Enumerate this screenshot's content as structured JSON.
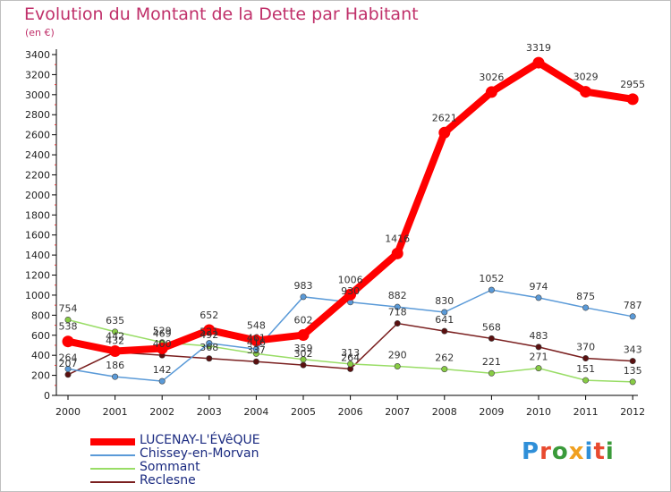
{
  "header": {
    "title": "Evolution du Montant de la Dette par Habitant",
    "unit": "(en €)"
  },
  "logo": {
    "text": "Proxiti",
    "letter_colors": [
      "#2f8fd8",
      "#e84a2f",
      "#3a9a3a",
      "#f0a020",
      "#2f8fd8",
      "#e84a2f",
      "#3a9a3a"
    ]
  },
  "chart_data": {
    "type": "line",
    "x": [
      "2000",
      "2001",
      "2002",
      "2003",
      "2004",
      "2005",
      "2006",
      "2007",
      "2008",
      "2009",
      "2010",
      "2011",
      "2012"
    ],
    "ylim": [
      0,
      3400
    ],
    "yticks": [
      0,
      200,
      400,
      600,
      800,
      1000,
      1200,
      1400,
      1600,
      1800,
      2000,
      2200,
      2400,
      2600,
      2800,
      3000,
      3200,
      3400
    ],
    "grid": false,
    "legend_position": "bottom-left",
    "series": [
      {
        "name": "Reclesne",
        "color": "#7a1f1f",
        "dot_fill": "#5a1010",
        "values": [
          207,
          432,
          400,
          368,
          337,
          302,
          264,
          718,
          641,
          568,
          483,
          370,
          343
        ]
      },
      {
        "name": "Sommant",
        "color": "#99dd66",
        "dot_fill": "#88cc44",
        "values": [
          754,
          635,
          529,
          492,
          416,
          359,
          313,
          290,
          262,
          221,
          271,
          151,
          135
        ]
      },
      {
        "name": "Chissey-en-Morvan",
        "color": "#5a9ad8",
        "dot_fill": "#5a9ad8",
        "values": [
          264,
          186,
          142,
          521,
          461,
          983,
          930,
          882,
          830,
          1052,
          974,
          875,
          787
        ]
      },
      {
        "name": "LUCENAY-L'ÉVêQUE",
        "color": "#ff0000",
        "dot_fill": "#ff0000",
        "values": [
          538,
          442,
          469,
          652,
          548,
          602,
          1006,
          1416,
          2621,
          3026,
          3319,
          3029,
          2955
        ]
      }
    ]
  }
}
